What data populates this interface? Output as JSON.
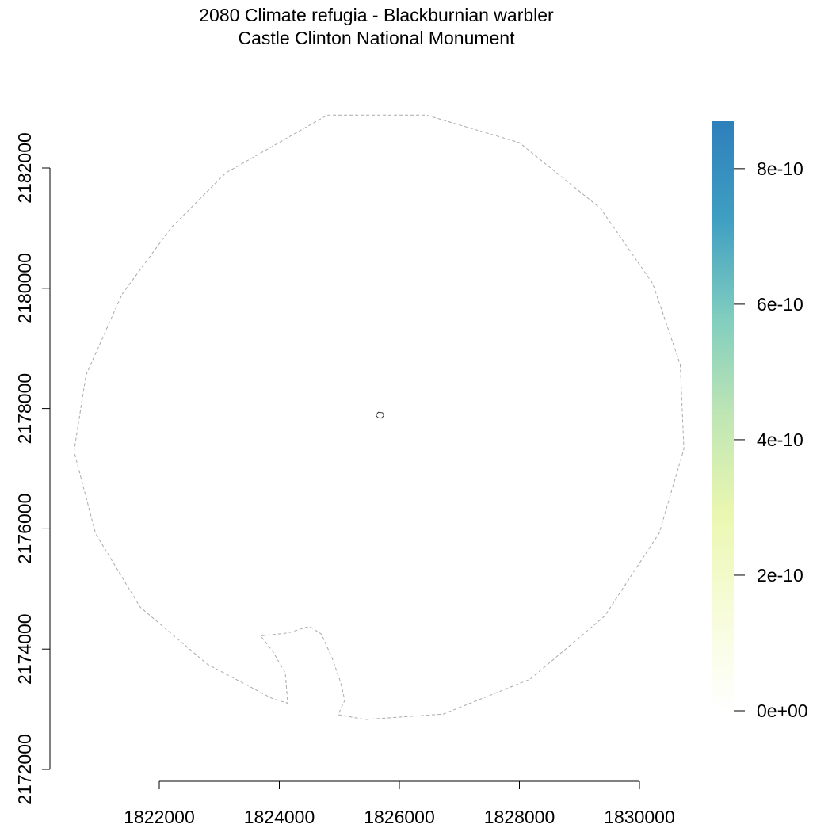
{
  "chart_data": {
    "type": "map",
    "title": "2080 Climate refugia - Blackburnian warbler",
    "subtitle": "Castle Clinton National Monument",
    "x_ticks": [
      1822000,
      1824000,
      1826000,
      1828000,
      1830000
    ],
    "y_ticks": [
      2172000,
      2174000,
      2176000,
      2178000,
      2180000,
      2182000
    ],
    "x_tick_labels": [
      "1822000",
      "1824000",
      "1826000",
      "1828000",
      "1830000"
    ],
    "y_tick_labels": [
      "2172000",
      "2174000",
      "2176000",
      "2178000",
      "2180000",
      "2182000"
    ],
    "xlim": [
      1822000,
      1830000
    ],
    "ylim": [
      2172000,
      2182000
    ],
    "boundary": [
      [
        1824800,
        2182880
      ],
      [
        1826450,
        2182880
      ],
      [
        1828000,
        2182420
      ],
      [
        1829350,
        2181330
      ],
      [
        1830220,
        2180080
      ],
      [
        1830680,
        2178730
      ],
      [
        1830740,
        2177330
      ],
      [
        1830330,
        2175930
      ],
      [
        1829420,
        2174550
      ],
      [
        1828180,
        2173500
      ],
      [
        1826730,
        2172920
      ],
      [
        1825430,
        2172830
      ],
      [
        1824980,
        2172910
      ],
      [
        1825090,
        2173150
      ],
      [
        1825020,
        2173450
      ],
      [
        1824880,
        2173850
      ],
      [
        1824700,
        2174250
      ],
      [
        1824500,
        2174380
      ],
      [
        1824150,
        2174270
      ],
      [
        1823690,
        2174220
      ],
      [
        1823900,
        2173950
      ],
      [
        1824100,
        2173600
      ],
      [
        1824140,
        2173100
      ],
      [
        1823880,
        2173180
      ],
      [
        1822800,
        2173750
      ],
      [
        1821680,
        2174700
      ],
      [
        1820940,
        2175920
      ],
      [
        1820580,
        2177290
      ],
      [
        1820780,
        2178560
      ],
      [
        1821380,
        2179900
      ],
      [
        1822200,
        2181010
      ],
      [
        1823110,
        2181920
      ],
      [
        1824800,
        2182880
      ]
    ],
    "site_polygon": [
      [
        1825650,
        2177940
      ],
      [
        1825720,
        2177930
      ],
      [
        1825740,
        2177880
      ],
      [
        1825700,
        2177840
      ],
      [
        1825640,
        2177850
      ],
      [
        1825610,
        2177890
      ],
      [
        1825650,
        2177940
      ]
    ],
    "legend": {
      "type": "colorbar",
      "placement": "right",
      "min": 0,
      "max": 8.7e-10,
      "ticks": [
        0,
        2e-10,
        4e-10,
        6e-10,
        8e-10
      ],
      "tick_labels": [
        "0e+00",
        "2e-10",
        "4e-10",
        "6e-10",
        "8e-10"
      ],
      "colors": [
        "#ffffff",
        "#f7fcd9",
        "#eaf7b0",
        "#bfe6b4",
        "#80cdbf",
        "#3f9fc2",
        "#2e7fbb"
      ]
    }
  }
}
